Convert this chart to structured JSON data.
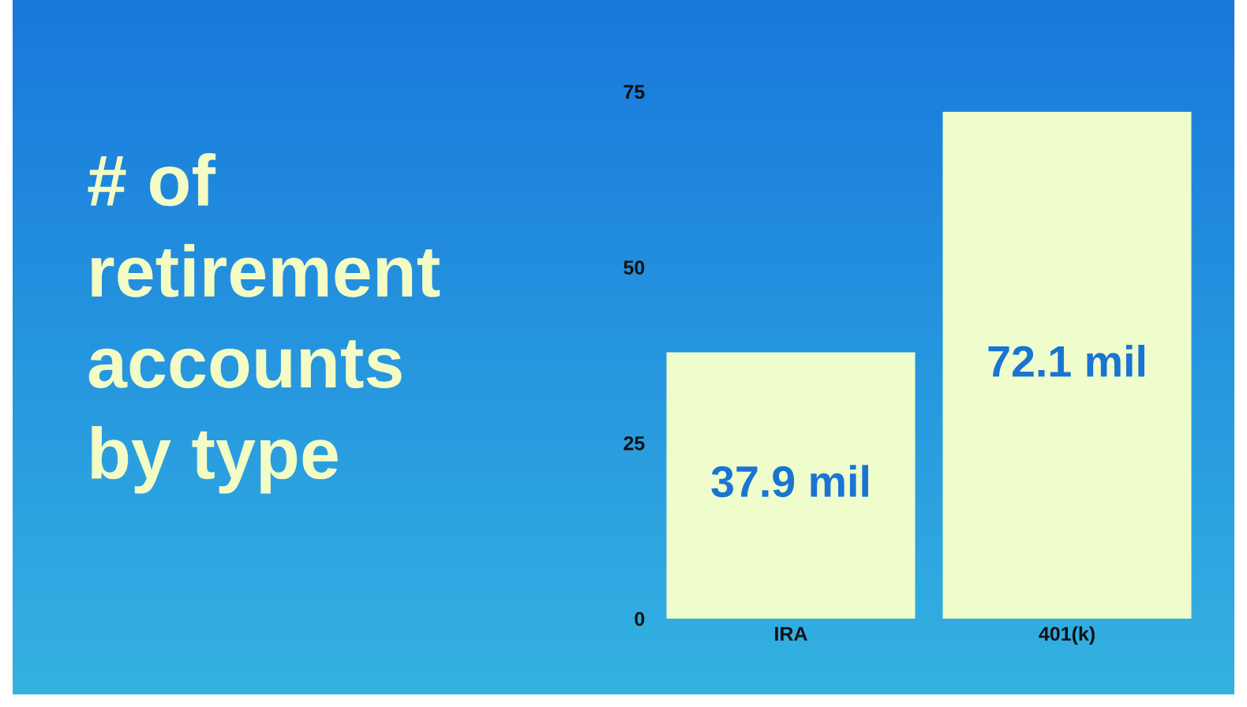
{
  "chart_data": {
    "type": "bar",
    "title": "# of\nretirement\naccounts\nby type",
    "categories": [
      "IRA",
      "401(k)"
    ],
    "values": [
      37.9,
      72.1
    ],
    "color": "#effdcc",
    "value_labels": [
      "37.9 mil",
      "72.1 mil"
    ],
    "ylim": [
      0,
      75
    ],
    "yticks": [
      0,
      25,
      50,
      75
    ],
    "grid": false,
    "legend": false
  }
}
